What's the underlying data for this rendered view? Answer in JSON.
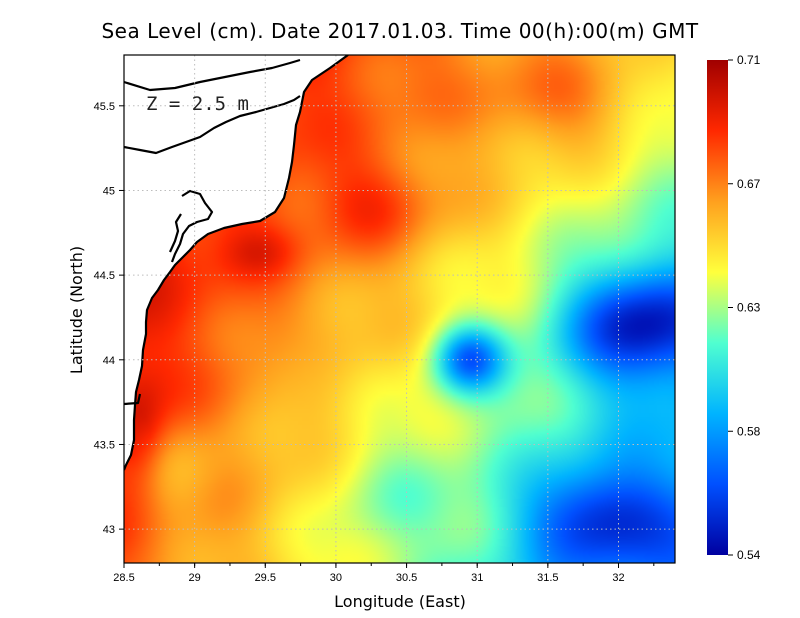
{
  "chart_data": {
    "type": "heatmap",
    "title": "Sea Level (cm). Date 2017.01.03. Time 00(h):00(m) GMT",
    "xlabel": "Longitude (East)",
    "ylabel": "Latitude (North)",
    "annotation": "Z = 2.5 m",
    "xlim": [
      28.5,
      32.4
    ],
    "ylim": [
      42.8,
      45.8
    ],
    "xticks": [
      28.5,
      29,
      29.5,
      30,
      30.5,
      31,
      31.5,
      32
    ],
    "xtick_labels": [
      "28.5",
      "29",
      "29.5",
      "30",
      "30.5",
      "31",
      "31.5",
      "32"
    ],
    "yticks": [
      43,
      43.5,
      44,
      44.5,
      45,
      45.5
    ],
    "ytick_labels": [
      "43",
      "43.5",
      "44",
      "44.5",
      "45",
      "45.5"
    ],
    "grid": true,
    "colorbar": {
      "min": 0.54,
      "max": 0.71,
      "ticks": [
        0.71,
        0.67,
        0.63,
        0.58,
        0.54
      ],
      "tick_labels": [
        "0.71",
        "0.67",
        "0.63",
        "0.58",
        "0.54"
      ],
      "colors": [
        "#0000a0",
        "#0050ff",
        "#00b4ff",
        "#50ffd0",
        "#ffff3c",
        "#ffa01e",
        "#ff2800",
        "#a00000"
      ]
    },
    "field_features": [
      {
        "name": "coastal-maximum",
        "lon": 28.6,
        "lat": 43.6,
        "value": 0.7
      },
      {
        "name": "north-max",
        "lon": 29.4,
        "lat": 44.65,
        "value": 0.69
      },
      {
        "name": "central-max",
        "lon": 30.2,
        "lat": 44.95,
        "value": 0.685
      },
      {
        "name": "northeast-high",
        "lon": 31.5,
        "lat": 45.55,
        "value": 0.67
      },
      {
        "name": "east-low",
        "lon": 32.2,
        "lat": 44.2,
        "value": 0.545
      },
      {
        "name": "southeast-low",
        "lon": 31.9,
        "lat": 43.05,
        "value": 0.55
      },
      {
        "name": "eddy-low",
        "lon": 30.95,
        "lat": 44.0,
        "value": 0.57
      },
      {
        "name": "south-mid",
        "lon": 30.5,
        "lat": 43.2,
        "value": 0.62
      },
      {
        "name": "southwest-yellow",
        "lon": 29.0,
        "lat": 43.3,
        "value": 0.655
      },
      {
        "name": "central-yellow",
        "lon": 29.8,
        "lat": 43.9,
        "value": 0.65
      }
    ]
  }
}
